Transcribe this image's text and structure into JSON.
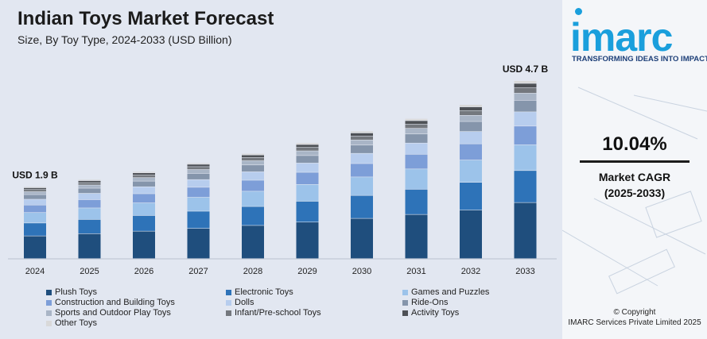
{
  "header": {
    "title": "Indian Toys Market Forecast",
    "subtitle": "Size, By Toy Type, 2024-2033 (USD Billion)"
  },
  "brand": {
    "logo_text": "imarc",
    "tagline": "TRANSFORMING IDEAS INTO IMPACT",
    "color": "#1a9fdc"
  },
  "cagr": {
    "value": "10.04%",
    "label_line1": "Market CAGR",
    "label_line2": "(2025-2033)"
  },
  "copyright": {
    "line1": "© Copyright",
    "line2": "IMARC Services Private Limited 2025"
  },
  "chart_data": {
    "type": "bar",
    "stacked": true,
    "title": "Indian Toys Market Forecast",
    "subtitle": "Size, By Toy Type, 2024-2033 (USD Billion)",
    "categories": [
      "2024",
      "2025",
      "2026",
      "2027",
      "2028",
      "2029",
      "2030",
      "2031",
      "2032",
      "2033"
    ],
    "totals": [
      1.9,
      2.09,
      2.3,
      2.53,
      2.78,
      3.06,
      3.37,
      3.7,
      4.07,
      4.7
    ],
    "annotations": [
      {
        "category": "2024",
        "text": "USD 1.9 B"
      },
      {
        "category": "2033",
        "text": "USD 4.7 B"
      }
    ],
    "legend_position": "bottom",
    "series": [
      {
        "name": "Plush Toys",
        "color": "#1f4e7d",
        "share": 0.315
      },
      {
        "name": "Electronic Toys",
        "color": "#2e73b8",
        "share": 0.18
      },
      {
        "name": "Games and Puzzles",
        "color": "#9cc3ea",
        "share": 0.145
      },
      {
        "name": "Construction and Building Toys",
        "color": "#7d9ed8",
        "share": 0.105
      },
      {
        "name": "Dolls",
        "color": "#b7cdee",
        "share": 0.08
      },
      {
        "name": "Ride-Ons",
        "color": "#8595ab",
        "share": 0.065
      },
      {
        "name": "Sports and Outdoor Play Toys",
        "color": "#a9b5c6",
        "share": 0.04
      },
      {
        "name": "Infant/Pre-school Toys",
        "color": "#74787e",
        "share": 0.03
      },
      {
        "name": "Activity Toys",
        "color": "#4e5156",
        "share": 0.025
      },
      {
        "name": "Other Toys",
        "color": "#d9d9d9",
        "share": 0.015
      }
    ]
  }
}
